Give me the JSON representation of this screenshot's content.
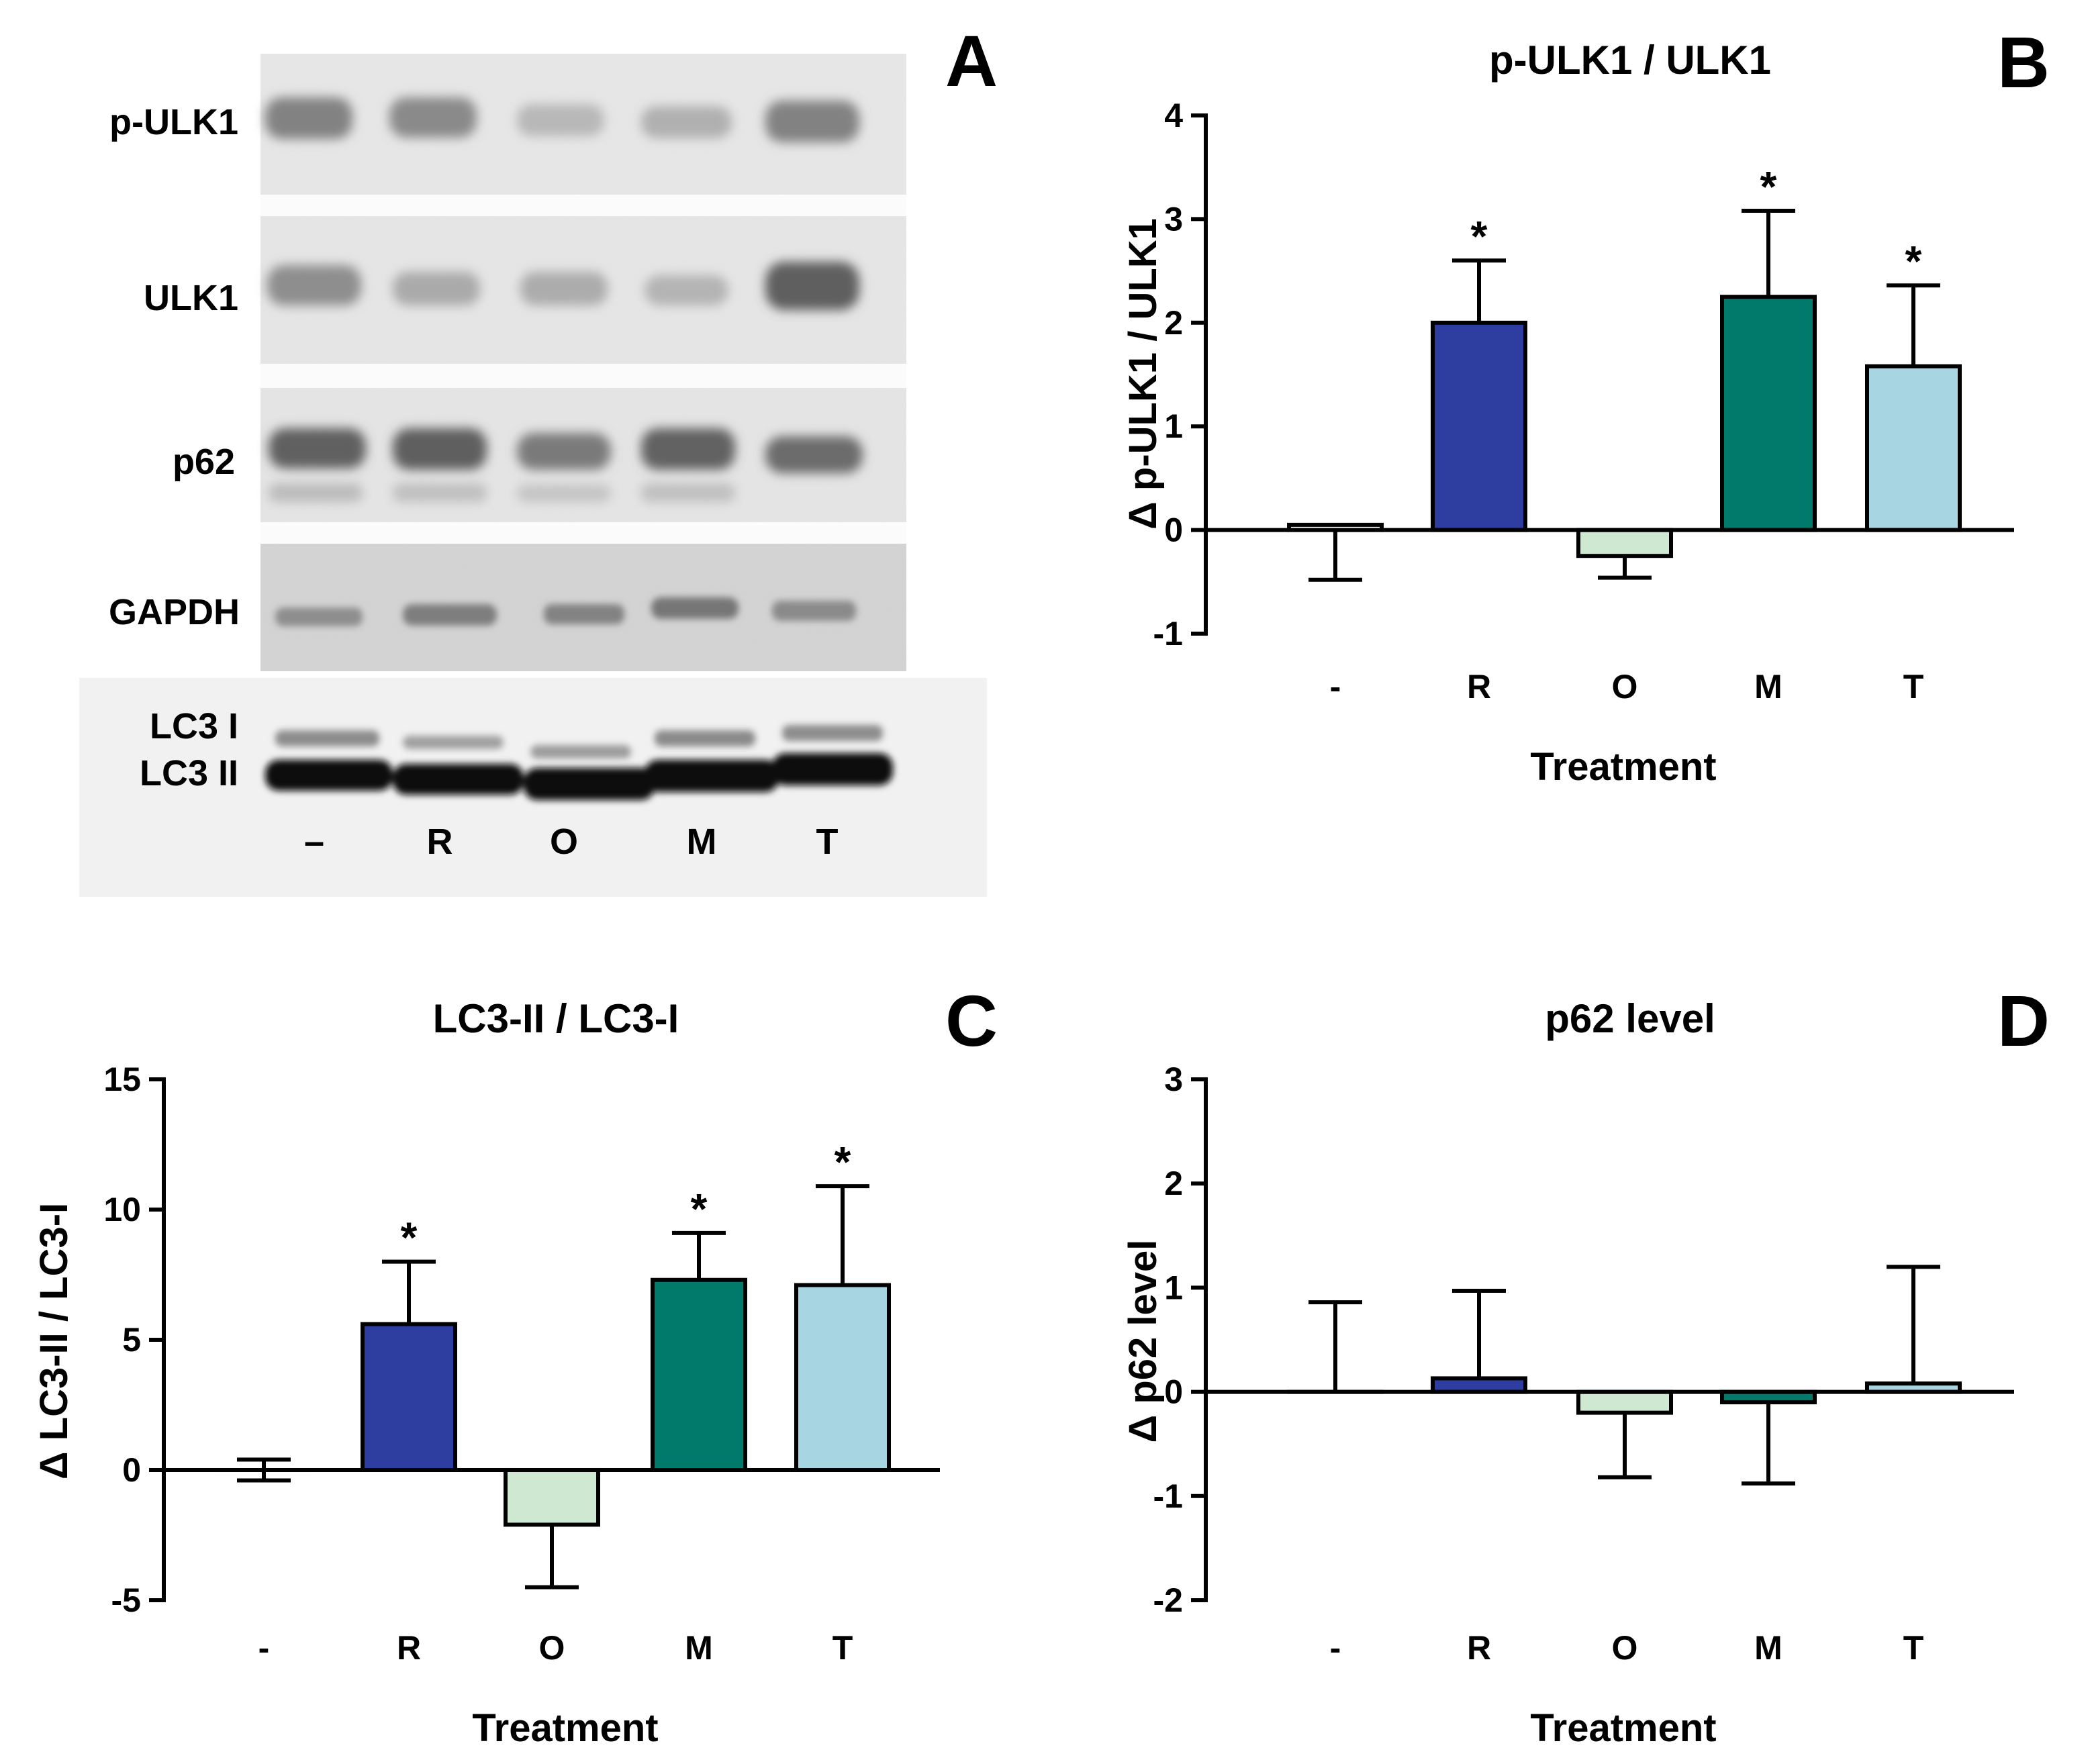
{
  "panel_labels": [
    "A",
    "B",
    "C",
    "D"
  ],
  "blot": {
    "protein_labels": [
      "p-ULK1",
      "ULK1",
      "p62",
      "GAPDH"
    ],
    "lc3_labels": [
      "LC3 I",
      "LC3 II"
    ],
    "lane_labels": [
      "–",
      "R",
      "O",
      "M",
      "T"
    ]
  },
  "chart_data": [
    {
      "type": "bar",
      "title": "p-ULK1 / ULK1",
      "xlabel": "Treatment",
      "ylabel": "Δ p-ULK1 / ULK1",
      "categories": [
        "-",
        "R",
        "O",
        "M",
        "T"
      ],
      "values": [
        0.05,
        2.0,
        -0.25,
        2.25,
        1.58
      ],
      "error_ends": [
        -0.48,
        2.6,
        -0.46,
        3.08,
        2.36
      ],
      "significance": [
        "",
        "*",
        "",
        "*",
        "*"
      ],
      "ylim": [
        -1,
        4
      ],
      "yticks": [
        "-1",
        "0",
        "1",
        "2",
        "3",
        "4"
      ],
      "tick_values": [
        -1,
        0,
        1,
        2,
        3,
        4
      ]
    },
    {
      "type": "bar",
      "title": "LC3-II / LC3-I",
      "xlabel": "Treatment",
      "ylabel": "Δ LC3-II / LC3-I",
      "categories": [
        "-",
        "R",
        "O",
        "M",
        "T"
      ],
      "values": [
        0,
        5.6,
        -2.1,
        7.3,
        7.1
      ],
      "error_ends": [
        0.4,
        8.0,
        -4.5,
        9.1,
        10.9
      ],
      "error_lows": [
        -0.4,
        null,
        null,
        null,
        null
      ],
      "significance": [
        "",
        "*",
        "",
        "*",
        "*"
      ],
      "ylim": [
        -5,
        15
      ],
      "yticks": [
        "-5",
        "0",
        "5",
        "10",
        "15"
      ],
      "tick_values": [
        -5,
        0,
        5,
        10,
        15
      ]
    },
    {
      "type": "bar",
      "title": "p62 level",
      "xlabel": "Treatment",
      "ylabel": "Δ p62 level",
      "categories": [
        "-",
        "R",
        "O",
        "M",
        "T"
      ],
      "values": [
        0,
        0.13,
        -0.2,
        -0.1,
        0.08
      ],
      "error_ends": [
        0.86,
        0.97,
        -0.82,
        -0.88,
        1.2
      ],
      "significance": [
        "",
        "",
        "",
        "",
        ""
      ],
      "ylim": [
        -2,
        3
      ],
      "yticks": [
        "-2",
        "-1",
        "0",
        "1",
        "2",
        "3"
      ],
      "tick_values": [
        -2,
        -1,
        0,
        1,
        2,
        3
      ]
    }
  ],
  "colors": {
    "-": "#ffffff",
    "R": "#2e3da0",
    "O": "#cfe8d2",
    "M": "#017a6c",
    "T": "#a7d5e2",
    "outline": "#000000"
  }
}
